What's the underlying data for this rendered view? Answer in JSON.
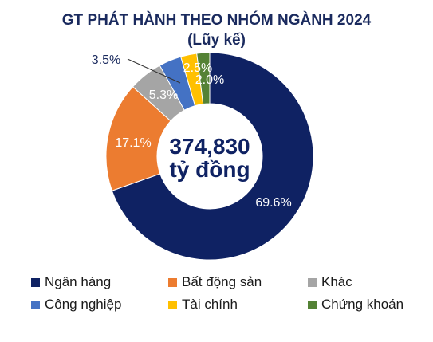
{
  "header": {
    "title": "GT PHÁT HÀNH THEO NHÓM NGÀNH 2024",
    "subtitle": "(Lũy kế)"
  },
  "center": {
    "line1": "374,830",
    "line2": "tỷ đồng"
  },
  "chart_data": {
    "type": "pie",
    "donut": true,
    "title": "GT PHÁT HÀNH THEO NHÓM NGÀNH 2024",
    "subtitle": "(Lũy kế)",
    "total": 374830,
    "total_label": "374,830 tỷ đồng",
    "legend_position": "bottom",
    "slices": [
      {
        "name": "Ngân hàng",
        "value": 69.6,
        "label": "69.6%",
        "color": "#0f2263"
      },
      {
        "name": "Bất động sản",
        "value": 17.1,
        "label": "17.1%",
        "color": "#ec7c30"
      },
      {
        "name": "Khác",
        "value": 5.3,
        "label": "5.3%",
        "color": "#a5a5a5"
      },
      {
        "name": "Công nghiệp",
        "value": 3.5,
        "label": "3.5%",
        "color": "#4472c4"
      },
      {
        "name": "Tài chính",
        "value": 2.5,
        "label": "2.5%",
        "color": "#ffc000"
      },
      {
        "name": "Chứng khoán",
        "value": 2.0,
        "label": "2.0%",
        "color": "#548235"
      }
    ]
  }
}
